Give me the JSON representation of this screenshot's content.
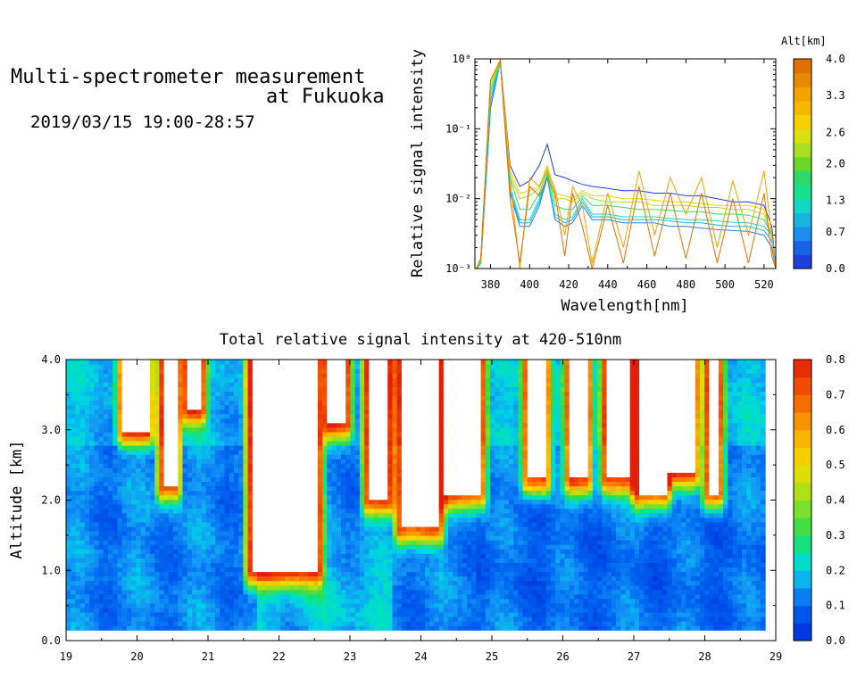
{
  "header": {
    "line1": "Multi-spectrometer measurement",
    "line2": "at Fukuoka",
    "line3": "2019/03/15 19:00-28:57"
  },
  "chart_data": [
    {
      "type": "line",
      "title": "",
      "xlabel": "Wavelength[nm]",
      "ylabel": "Relative signal intensity",
      "yscale": "log",
      "xlim": [
        372,
        526
      ],
      "ylim": [
        0.001,
        1
      ],
      "xticks": [
        "380",
        "400",
        "420",
        "440",
        "460",
        "480",
        "500",
        "520"
      ],
      "yticks": [
        "10⁻³",
        "10⁻²",
        "10⁻¹",
        "10⁰"
      ],
      "colorbar": {
        "label": "Alt[km]",
        "ticks": [
          "0.0",
          "0.7",
          "1.3",
          "2.0",
          "2.6",
          "3.3",
          "4.0"
        ]
      },
      "x": [
        372,
        375,
        380,
        385,
        390,
        395,
        400,
        405,
        409,
        413,
        418,
        422,
        427,
        432,
        440,
        448,
        456,
        464,
        472,
        480,
        488,
        496,
        504,
        512,
        520,
        524,
        526
      ],
      "series": [
        {
          "color": "#1f3fd8",
          "values": [
            0.0008,
            0.0012,
            0.2,
            0.95,
            0.03,
            0.015,
            0.018,
            0.03,
            0.06,
            0.022,
            0.02,
            0.018,
            0.016,
            0.015,
            0.014,
            0.013,
            0.013,
            0.012,
            0.012,
            0.011,
            0.011,
            0.01,
            0.009,
            0.009,
            0.008,
            0.004,
            0.001
          ]
        },
        {
          "color": "#1c7ee6",
          "values": [
            0.0008,
            0.0012,
            0.2,
            0.9,
            0.012,
            0.004,
            0.004,
            0.008,
            0.02,
            0.005,
            0.004,
            0.0045,
            0.008,
            0.005,
            0.005,
            0.0045,
            0.0045,
            0.0045,
            0.004,
            0.004,
            0.0038,
            0.0036,
            0.0035,
            0.0034,
            0.003,
            0.002,
            0.001
          ]
        },
        {
          "color": "#1ab2e0",
          "values": [
            0.0008,
            0.0012,
            0.25,
            0.9,
            0.013,
            0.0045,
            0.0045,
            0.009,
            0.021,
            0.0055,
            0.0045,
            0.005,
            0.009,
            0.0055,
            0.0055,
            0.005,
            0.005,
            0.005,
            0.0048,
            0.0045,
            0.0045,
            0.0042,
            0.004,
            0.004,
            0.0035,
            0.0025,
            0.001
          ]
        },
        {
          "color": "#12d8c6",
          "values": [
            0.0008,
            0.0012,
            0.3,
            0.9,
            0.015,
            0.005,
            0.005,
            0.01,
            0.022,
            0.006,
            0.005,
            0.0055,
            0.01,
            0.006,
            0.006,
            0.0055,
            0.0055,
            0.0055,
            0.0052,
            0.005,
            0.005,
            0.0048,
            0.0046,
            0.0045,
            0.004,
            0.003,
            0.001
          ]
        },
        {
          "color": "#2fd86a",
          "values": [
            0.0008,
            0.0013,
            0.35,
            0.92,
            0.02,
            0.007,
            0.007,
            0.012,
            0.025,
            0.008,
            0.007,
            0.007,
            0.011,
            0.008,
            0.008,
            0.0075,
            0.007,
            0.007,
            0.0068,
            0.0065,
            0.0065,
            0.006,
            0.006,
            0.0058,
            0.005,
            0.003,
            0.001
          ]
        },
        {
          "color": "#a8e020",
          "values": [
            0.0008,
            0.0013,
            0.4,
            0.95,
            0.022,
            0.01,
            0.011,
            0.014,
            0.028,
            0.01,
            0.01,
            0.009,
            0.012,
            0.01,
            0.009,
            0.009,
            0.009,
            0.008,
            0.008,
            0.008,
            0.0075,
            0.0075,
            0.007,
            0.007,
            0.006,
            0.003,
            0.001
          ]
        },
        {
          "color": "#f5d000",
          "values": [
            0.0008,
            0.0014,
            0.45,
            0.95,
            0.025,
            0.012,
            0.013,
            0.015,
            0.03,
            0.012,
            0.011,
            0.01,
            0.013,
            0.011,
            0.011,
            0.01,
            0.01,
            0.0095,
            0.009,
            0.009,
            0.0085,
            0.008,
            0.008,
            0.008,
            0.007,
            0.003,
            0.001
          ]
        },
        {
          "color": "#f3a200",
          "values": [
            0.0008,
            0.0014,
            0.5,
            0.95,
            0.02,
            0.001,
            0.02,
            0.015,
            0.025,
            0.014,
            0.003,
            0.015,
            0.008,
            0.0012,
            0.012,
            0.002,
            0.025,
            0.003,
            0.02,
            0.006,
            0.02,
            0.002,
            0.018,
            0.003,
            0.025,
            0.003,
            0.001
          ]
        },
        {
          "color": "#e07000",
          "values": [
            0.0008,
            0.0014,
            0.5,
            0.95,
            0.01,
            0.0012,
            0.015,
            0.011,
            0.02,
            0.012,
            0.0015,
            0.012,
            0.004,
            0.001,
            0.008,
            0.0012,
            0.015,
            0.0015,
            0.012,
            0.0014,
            0.012,
            0.0012,
            0.01,
            0.0012,
            0.012,
            0.0015,
            0.001
          ]
        }
      ]
    },
    {
      "type": "heatmap",
      "title": "Total relative signal intensity at 420-510nm",
      "xlabel": "",
      "ylabel": "Altitude [km]",
      "xlim": [
        19,
        29
      ],
      "ylim": [
        0,
        4
      ],
      "xticks": [
        "19",
        "20",
        "21",
        "22",
        "23",
        "24",
        "25",
        "26",
        "27",
        "28",
        "29"
      ],
      "yticks": [
        "0.0",
        "1.0",
        "2.0",
        "3.0",
        "4.0"
      ],
      "data_xrange": [
        19,
        28.85
      ],
      "data_yrange": [
        0.15,
        4.0
      ],
      "colorbar": {
        "ticks": [
          "0.0",
          "0.1",
          "0.2",
          "0.3",
          "0.4",
          "0.5",
          "0.6",
          "0.7",
          "0.8"
        ]
      },
      "cloud_regions": [
        {
          "x": [
            19.8,
            20.15
          ],
          "base_km": 3.0
        },
        {
          "x": [
            20.35,
            20.55
          ],
          "base_km": 2.2
        },
        {
          "x": [
            20.7,
            20.9
          ],
          "base_km": 3.3
        },
        {
          "x": [
            21.6,
            22.55
          ],
          "base_km": 1.0
        },
        {
          "x": [
            22.7,
            22.95
          ],
          "base_km": 3.1
        },
        {
          "x": [
            23.25,
            23.55
          ],
          "base_km": 2.0
        },
        {
          "x": [
            23.7,
            24.25
          ],
          "base_km": 1.6
        },
        {
          "x": [
            24.35,
            24.85
          ],
          "base_km": 2.1
        },
        {
          "x": [
            25.5,
            25.75
          ],
          "base_km": 2.3
        },
        {
          "x": [
            26.1,
            26.35
          ],
          "base_km": 2.3
        },
        {
          "x": [
            26.6,
            26.95
          ],
          "base_km": 2.3
        },
        {
          "x": [
            27.05,
            27.45
          ],
          "base_km": 2.1
        },
        {
          "x": [
            27.5,
            27.85
          ],
          "base_km": 2.4
        },
        {
          "x": [
            28.05,
            28.2
          ],
          "base_km": 2.1
        }
      ]
    }
  ]
}
